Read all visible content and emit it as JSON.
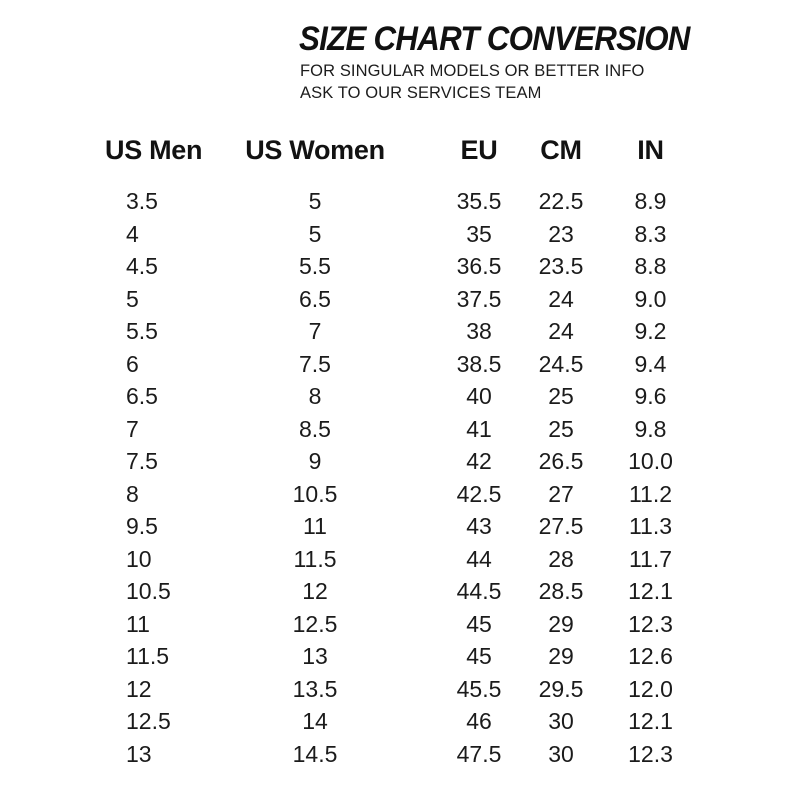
{
  "header": {
    "title": "SIZE CHART CONVERSION",
    "subtitle_line1": "FOR SINGULAR MODELS OR BETTER INFO",
    "subtitle_line2": "ASK TO OUR SERVICES TEAM"
  },
  "chart_data": {
    "type": "table",
    "title": "SIZE CHART CONVERSION",
    "columns": [
      "US Men",
      "US Women",
      "EU",
      "CM",
      "IN"
    ],
    "rows": [
      [
        "3.5",
        "5",
        "35.5",
        "22.5",
        "8.9"
      ],
      [
        "4",
        "5",
        "35",
        "23",
        "8.3"
      ],
      [
        "4.5",
        "5.5",
        "36.5",
        "23.5",
        "8.8"
      ],
      [
        "5",
        "6.5",
        "37.5",
        "24",
        "9.0"
      ],
      [
        "5.5",
        "7",
        "38",
        "24",
        "9.2"
      ],
      [
        "6",
        "7.5",
        "38.5",
        "24.5",
        "9.4"
      ],
      [
        "6.5",
        "8",
        "40",
        "25",
        "9.6"
      ],
      [
        "7",
        "8.5",
        "41",
        "25",
        "9.8"
      ],
      [
        "7.5",
        "9",
        "42",
        "26.5",
        "10.0"
      ],
      [
        "8",
        "10.5",
        "42.5",
        "27",
        "11.2"
      ],
      [
        "9.5",
        "11",
        "43",
        "27.5",
        "11.3"
      ],
      [
        "10",
        "11.5",
        "44",
        "28",
        "11.7"
      ],
      [
        "10.5",
        "12",
        "44.5",
        "28.5",
        "12.1"
      ],
      [
        "11",
        "12.5",
        "45",
        "29",
        "12.3"
      ],
      [
        "11.5",
        "13",
        "45",
        "29",
        "12.6"
      ],
      [
        "12",
        "13.5",
        "45.5",
        "29.5",
        "12.0"
      ],
      [
        "12.5",
        "14",
        "46",
        "30",
        "12.1"
      ],
      [
        "13",
        "14.5",
        "47.5",
        "30",
        "12.3"
      ]
    ]
  },
  "colors": {
    "background": "#ffffff",
    "text": "#161616"
  }
}
